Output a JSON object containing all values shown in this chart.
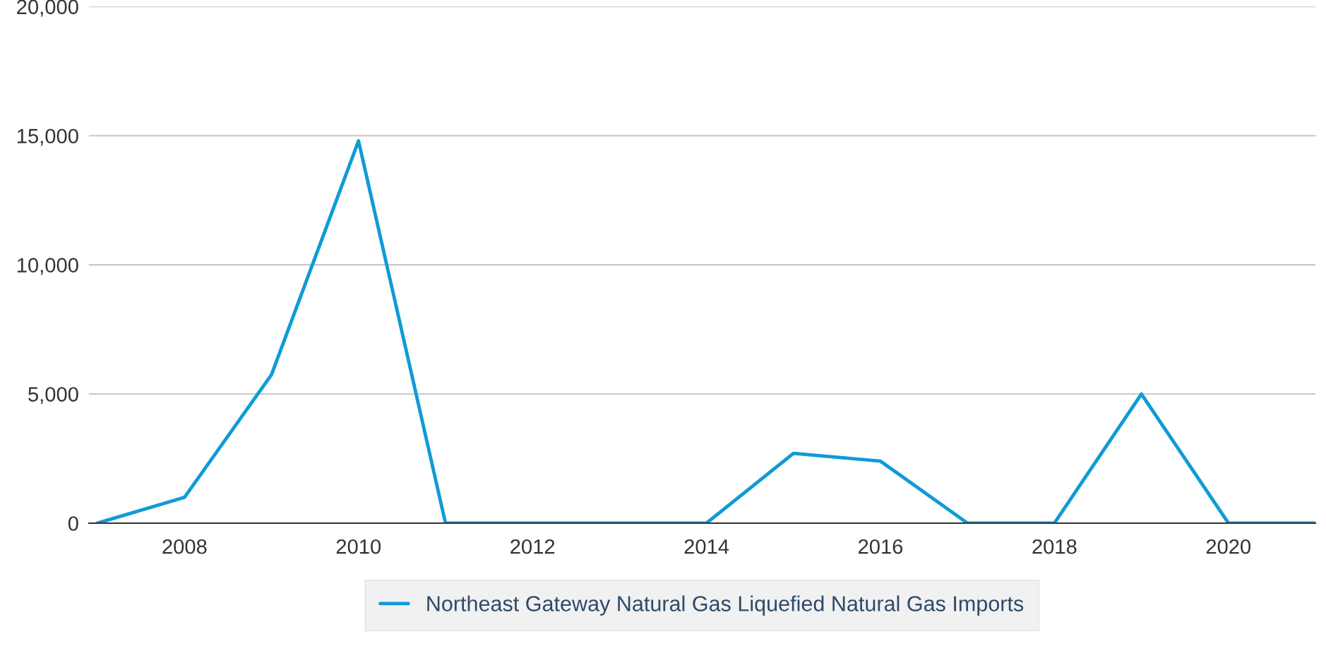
{
  "chart_data": {
    "type": "line",
    "x": [
      2007,
      2008,
      2009,
      2010,
      2011,
      2012,
      2013,
      2014,
      2015,
      2016,
      2017,
      2018,
      2019,
      2020,
      2021
    ],
    "series": [
      {
        "name": "Northeast Gateway Natural Gas Liquefied Natural Gas Imports",
        "color": "#0f9bd7",
        "values": [
          0,
          1000,
          5750,
          14800,
          0,
          0,
          0,
          0,
          2700,
          2400,
          0,
          0,
          5000,
          0,
          0
        ]
      }
    ],
    "xlim": [
      2006.9,
      2021.0
    ],
    "xticks": [
      2008,
      2010,
      2012,
      2014,
      2016,
      2018,
      2020
    ],
    "ylim": [
      0,
      20000
    ],
    "yticks": [
      {
        "value": 0,
        "label": "0"
      },
      {
        "value": 5000,
        "label": "5,000"
      },
      {
        "value": 10000,
        "label": "10,000"
      },
      {
        "value": 15000,
        "label": "15,000"
      },
      {
        "value": 20000,
        "label": "20,000"
      }
    ],
    "grid": "y",
    "legend": "bottom",
    "marker": "none",
    "line_style": "solid"
  }
}
